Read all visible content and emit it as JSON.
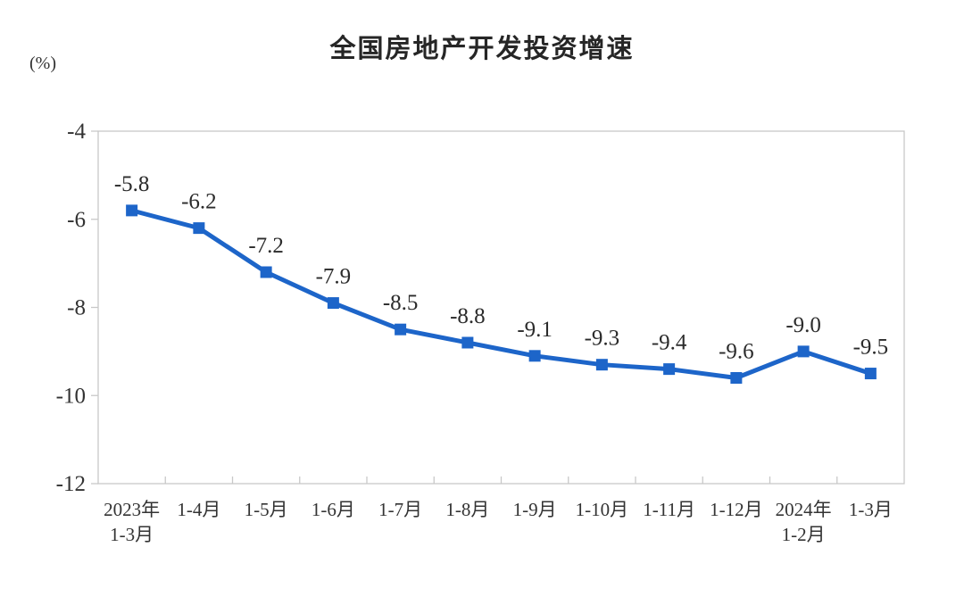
{
  "chart_data": {
    "type": "line",
    "title": "全国房地产开发投资增速",
    "unit_label": "(%)",
    "categories": [
      "2023年\n1-3月",
      "1-4月",
      "1-5月",
      "1-6月",
      "1-7月",
      "1-8月",
      "1-9月",
      "1-10月",
      "1-11月",
      "1-12月",
      "2024年\n1-2月",
      "1-3月"
    ],
    "values": [
      -5.8,
      -6.2,
      -7.2,
      -7.9,
      -8.5,
      -8.8,
      -9.1,
      -9.3,
      -9.4,
      -9.6,
      -9.0,
      -9.5
    ],
    "data_labels": [
      "-5.8",
      "-6.2",
      "-7.2",
      "-7.9",
      "-8.5",
      "-8.8",
      "-9.1",
      "-9.3",
      "-9.4",
      "-9.6",
      "-9.0",
      "-9.5"
    ],
    "ylim": [
      -12,
      -4
    ],
    "yticks": [
      -4,
      -6,
      -8,
      -10,
      -12
    ],
    "grid": false,
    "legend": "none",
    "line_color": "#1D65C9",
    "marker": "square"
  },
  "style": {
    "axis_color": "#c8c8c8",
    "text_color": "#333333",
    "data_label_color": "#2b2b2b",
    "title_color": "#262626",
    "background": "#ffffff"
  }
}
